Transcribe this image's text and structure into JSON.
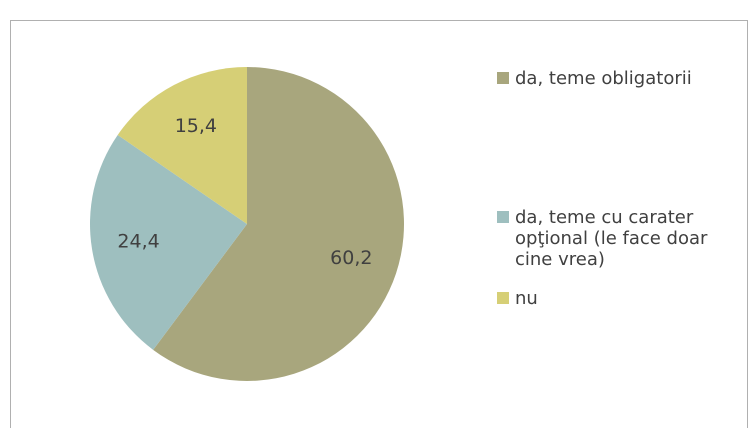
{
  "chart_data": {
    "type": "pie",
    "categories": [
      "da, teme obligatorii",
      "da, teme cu carater opţional (le face doar cine vrea)",
      "nu"
    ],
    "values": [
      60.2,
      24.4,
      15.4
    ],
    "value_labels": [
      "60,2",
      "24,4",
      "15,4"
    ],
    "colors": [
      "#a8a67d",
      "#9ebfbf",
      "#d6cf76"
    ],
    "legend": "right"
  }
}
